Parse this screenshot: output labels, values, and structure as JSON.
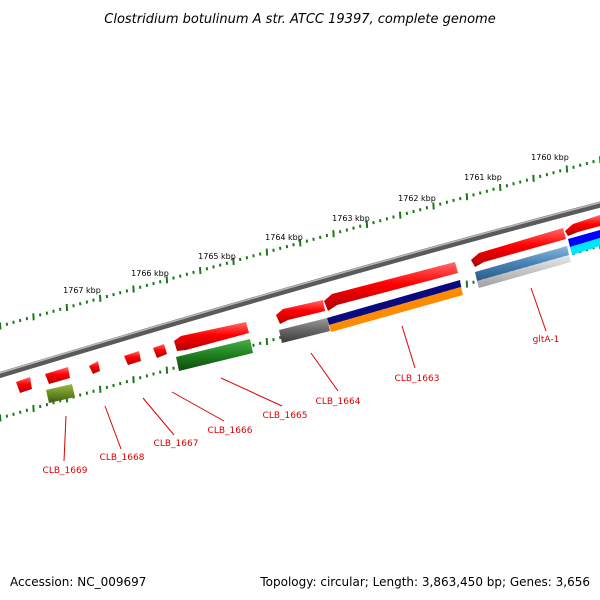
{
  "title": "Clostridium botulinum A str. ATCC 19397, complete genome",
  "footer": {
    "accession": "Accession: NC_009697",
    "stats": "Topology: circular; Length: 3,863,450 bp; Genes: 3,656"
  },
  "scale_labels": [
    "1760 kbp",
    "1761 kbp",
    "1762 kbp",
    "1763 kbp",
    "1764 kbp",
    "1765 kbp",
    "1766 kbp",
    "1767 kbp"
  ],
  "gene_labels": [
    "gltA-1",
    "CLB_1663",
    "CLB_1664",
    "CLB_1665",
    "CLB_1666",
    "CLB_1667",
    "CLB_1668",
    "CLB_1669"
  ],
  "colors": {
    "backbone": "#808080",
    "cds": "#ff0000",
    "ticks": "#1a7a1a",
    "label": "#e00000"
  }
}
